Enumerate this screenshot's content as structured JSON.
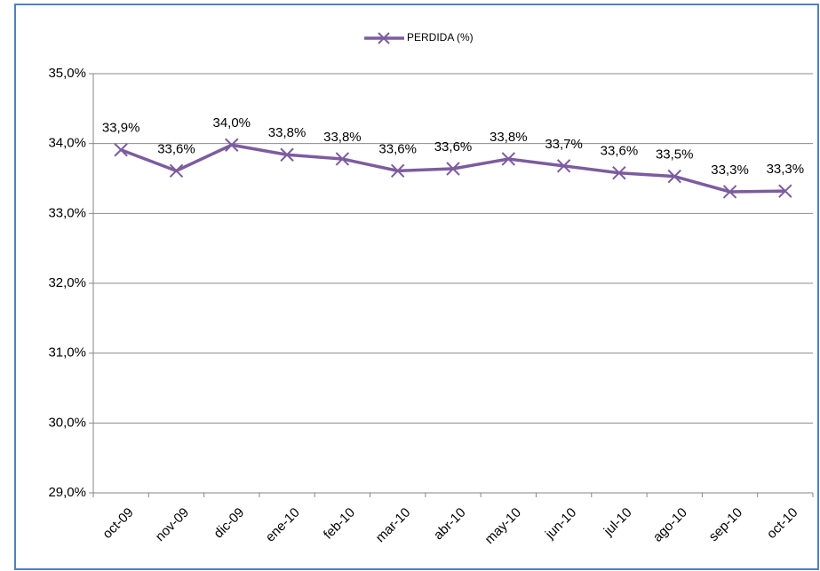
{
  "chart_data": {
    "type": "line",
    "categories": [
      "oct-09",
      "nov-09",
      "dic-09",
      "ene-10",
      "feb-10",
      "mar-10",
      "abr-10",
      "may-10",
      "jun-10",
      "jul-10",
      "ago-10",
      "sep-10",
      "oct-10"
    ],
    "series": [
      {
        "name": "PERDIDA (%)",
        "color": "#7c5c9e",
        "values": [
          33.91,
          33.61,
          33.98,
          33.84,
          33.78,
          33.61,
          33.64,
          33.78,
          33.68,
          33.58,
          33.53,
          33.31,
          33.32
        ],
        "value_labels": [
          "33,9%",
          "33,6%",
          "34,0%",
          "33,8%",
          "33,8%",
          "33,6%",
          "33,6%",
          "33,8%",
          "33,7%",
          "33,6%",
          "33,5%",
          "33,3%",
          "33,3%"
        ]
      }
    ],
    "ylim": [
      29,
      35
    ],
    "yticks": [
      {
        "value": 29,
        "label": "29,0%"
      },
      {
        "value": 30,
        "label": "30,0%"
      },
      {
        "value": 31,
        "label": "31,0%"
      },
      {
        "value": 32,
        "label": "32,0%"
      },
      {
        "value": 33,
        "label": "33,0%"
      },
      {
        "value": 34,
        "label": "34,0%"
      },
      {
        "value": 35,
        "label": "35,0%"
      }
    ],
    "grid": true,
    "legend": "top"
  }
}
